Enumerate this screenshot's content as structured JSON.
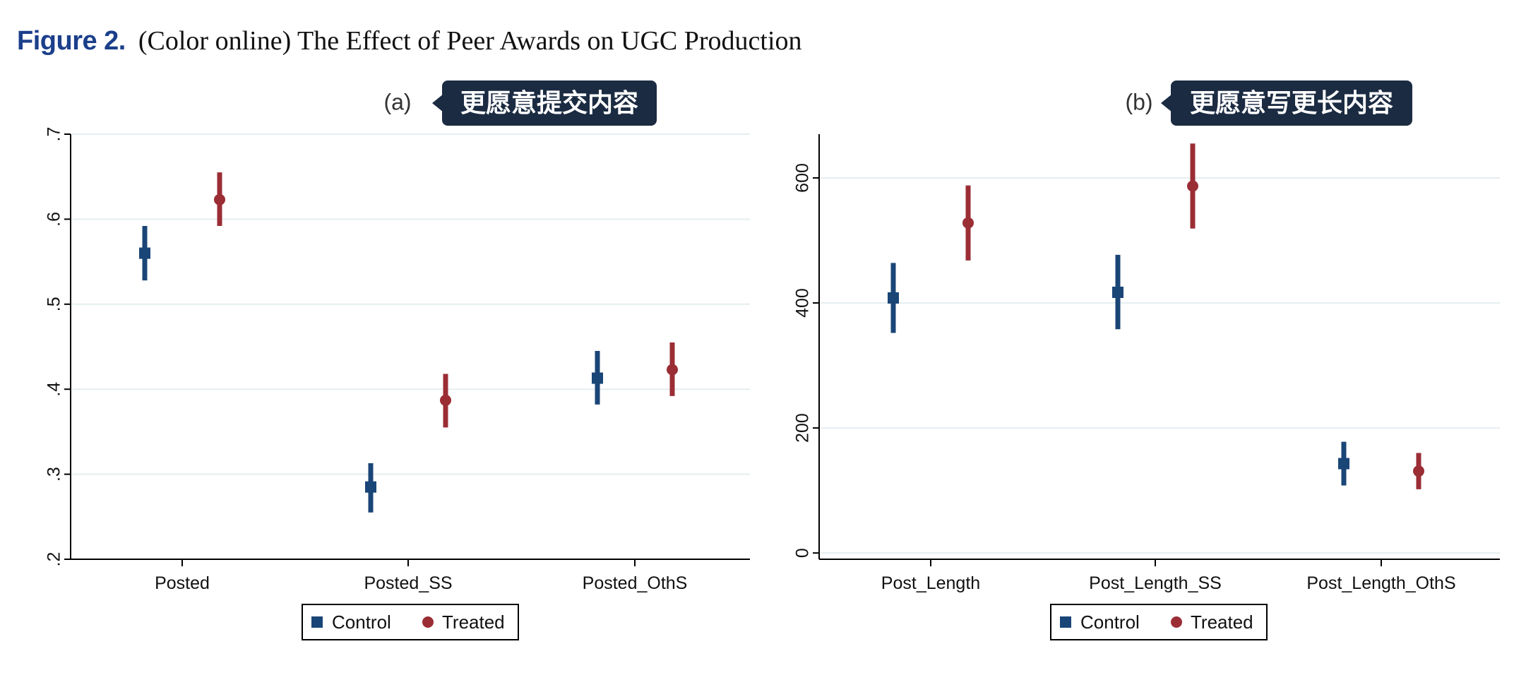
{
  "header": {
    "figure_label": "Figure 2.",
    "caption": "(Color online) The Effect of Peer Awards on UGC Production"
  },
  "colors": {
    "control": "#1a4577",
    "treated": "#9b2d35",
    "grid": "#e5eef0",
    "callout_bg": "#1b2b42"
  },
  "legend": {
    "control_label": "Control",
    "treated_label": "Treated"
  },
  "chart_data": [
    {
      "type": "scatter",
      "subplot_label": "(a)",
      "callout": "更愿意提交内容",
      "categories": [
        "Posted",
        "Posted_SS",
        "Posted_OthS"
      ],
      "ylim": [
        0.2,
        0.7
      ],
      "yticks": [
        0.2,
        0.3,
        0.4,
        0.5,
        0.6,
        0.7
      ],
      "ytick_labels": [
        ".2",
        ".3",
        ".4",
        ".5",
        ".6",
        ".7"
      ],
      "grid": true,
      "legend_position": "bottom-center",
      "series": [
        {
          "name": "Control",
          "marker": "square",
          "values": [
            0.56,
            0.285,
            0.413
          ],
          "ci_low": [
            0.528,
            0.255,
            0.382
          ],
          "ci_high": [
            0.592,
            0.313,
            0.445
          ]
        },
        {
          "name": "Treated",
          "marker": "circle",
          "values": [
            0.623,
            0.387,
            0.423
          ],
          "ci_low": [
            0.592,
            0.355,
            0.392
          ],
          "ci_high": [
            0.655,
            0.418,
            0.455
          ]
        }
      ]
    },
    {
      "type": "scatter",
      "subplot_label": "(b)",
      "callout": "更愿意写更长内容",
      "categories": [
        "Post_Length",
        "Post_Length_SS",
        "Post_Length_OthS"
      ],
      "ylim": [
        -10,
        670
      ],
      "yticks": [
        0,
        200,
        400,
        600
      ],
      "ytick_labels": [
        "0",
        "200",
        "400",
        "600"
      ],
      "grid": true,
      "legend_position": "bottom-center",
      "series": [
        {
          "name": "Control",
          "marker": "square",
          "values": [
            408,
            417,
            143
          ],
          "ci_low": [
            352,
            358,
            108
          ],
          "ci_high": [
            464,
            477,
            178
          ]
        },
        {
          "name": "Treated",
          "marker": "circle",
          "values": [
            528,
            587,
            131
          ],
          "ci_low": [
            468,
            519,
            102
          ],
          "ci_high": [
            588,
            655,
            160
          ]
        }
      ]
    }
  ]
}
